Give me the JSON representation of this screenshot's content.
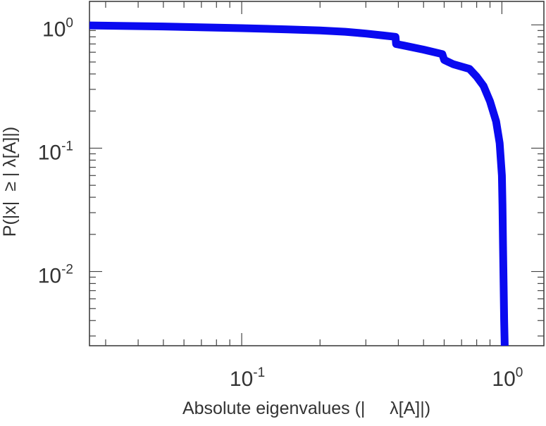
{
  "chart_data": {
    "type": "line",
    "title": "",
    "xlabel": "Absolute eigenvalues (|     λ[A]|)",
    "ylabel": "P(|x|  ≥ | λ[A]|)",
    "x_scale": "log",
    "y_scale": "log",
    "xlim": [
      0.026,
      1.45
    ],
    "ylim": [
      0.0025,
      1.55
    ],
    "grid": false,
    "legend": "none",
    "x_ticks": [
      {
        "value": 0.1,
        "base": "10",
        "exp": "-1"
      },
      {
        "value": 1,
        "base": "10",
        "exp": "0"
      }
    ],
    "y_ticks": [
      {
        "value": 0.01,
        "base": "10",
        "exp": "-2"
      },
      {
        "value": 0.1,
        "base": "10",
        "exp": "-1"
      },
      {
        "value": 1,
        "base": "10",
        "exp": "0"
      }
    ],
    "series": [
      {
        "color": "#0a0af0",
        "x": [
          0.026,
          0.05,
          0.1,
          0.15,
          0.2,
          0.25,
          0.3,
          0.35,
          0.39,
          0.392,
          0.42,
          0.5,
          0.59,
          0.6,
          0.65,
          0.75,
          0.8,
          0.85,
          0.9,
          0.95,
          0.98,
          1.0,
          1.005,
          1.01,
          1.015,
          1.02,
          1.025
        ],
        "y": [
          0.99,
          0.97,
          0.94,
          0.92,
          0.9,
          0.88,
          0.85,
          0.82,
          0.8,
          0.7,
          0.68,
          0.63,
          0.58,
          0.52,
          0.48,
          0.44,
          0.38,
          0.32,
          0.24,
          0.165,
          0.11,
          0.06,
          0.035,
          0.016,
          0.008,
          0.004,
          0.0025
        ]
      }
    ]
  }
}
